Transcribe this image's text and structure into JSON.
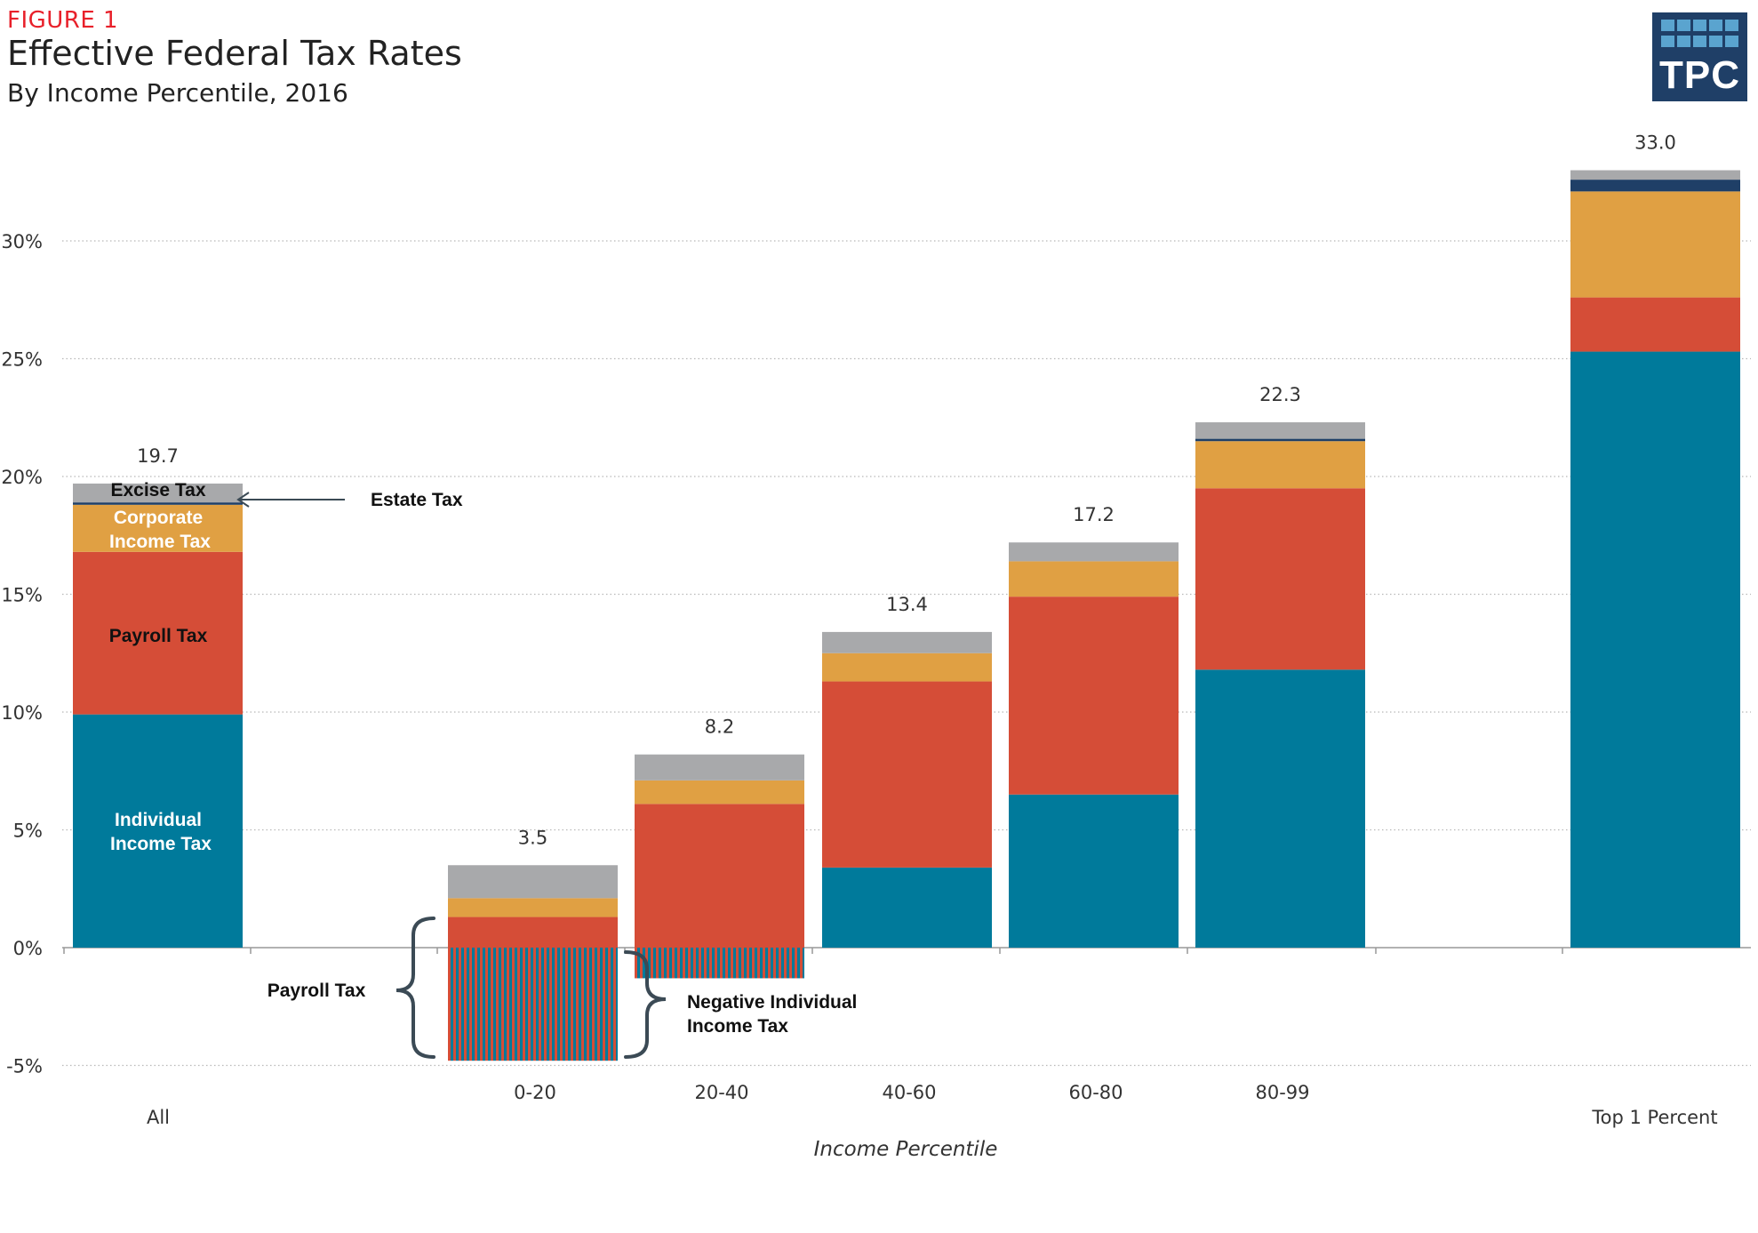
{
  "figure_label": "FIGURE 1",
  "title": "Effective Federal Tax Rates",
  "subtitle": "By Income Percentile, 2016",
  "logo_text": "TPC",
  "colors": {
    "individual_income_tax": "#007a9b",
    "payroll_tax": "#d54d37",
    "corporate_income_tax": "#e0a043",
    "estate_tax": "#1f3f67",
    "excise_tax": "#a8a9ab",
    "title_red": "#e8202a"
  },
  "chart_data": {
    "type": "bar",
    "stacked": true,
    "xlabel": "Income Percentile",
    "ylabel": "",
    "ylim": [
      -5,
      33
    ],
    "yticks": [
      -5,
      0,
      5,
      10,
      15,
      20,
      25,
      30
    ],
    "ytick_labels": [
      "-5%",
      "0%",
      "5%",
      "10%",
      "15%",
      "20%",
      "25%",
      "30%"
    ],
    "grid": true,
    "categories": [
      "All",
      "0-20",
      "20-40",
      "40-60",
      "60-80",
      "80-99",
      "Top 1 Percent"
    ],
    "totals": [
      "19.7",
      "3.5",
      "8.2",
      "13.4",
      "17.2",
      "22.3",
      "33.0"
    ],
    "series": [
      {
        "key": "individual_income_tax",
        "values": [
          9.9,
          -4.8,
          -1.3,
          3.4,
          6.5,
          11.8,
          25.3
        ]
      },
      {
        "key": "payroll_tax",
        "values": [
          6.9,
          1.3,
          6.1,
          7.9,
          8.4,
          7.7,
          2.3
        ]
      },
      {
        "key": "corporate_income_tax",
        "values": [
          2.0,
          0.8,
          1.0,
          1.2,
          1.5,
          2.0,
          4.5
        ]
      },
      {
        "key": "estate_tax",
        "values": [
          0.1,
          0.0,
          0.0,
          0.0,
          0.0,
          0.1,
          0.5
        ]
      },
      {
        "key": "excise_tax",
        "values": [
          0.8,
          1.4,
          1.1,
          0.9,
          0.8,
          0.7,
          0.4
        ]
      }
    ],
    "annotations": {
      "excise": "Excise Tax",
      "corporate_line1": "Corporate",
      "corporate_line2": "Income Tax",
      "payroll_in_bar": "Payroll Tax",
      "individual_line1": "Individual",
      "individual_line2": "Income Tax",
      "estate": "Estate Tax",
      "payroll_negative": "Payroll Tax",
      "negative_line1": "Negative Individual",
      "negative_line2": "Income Tax"
    }
  }
}
